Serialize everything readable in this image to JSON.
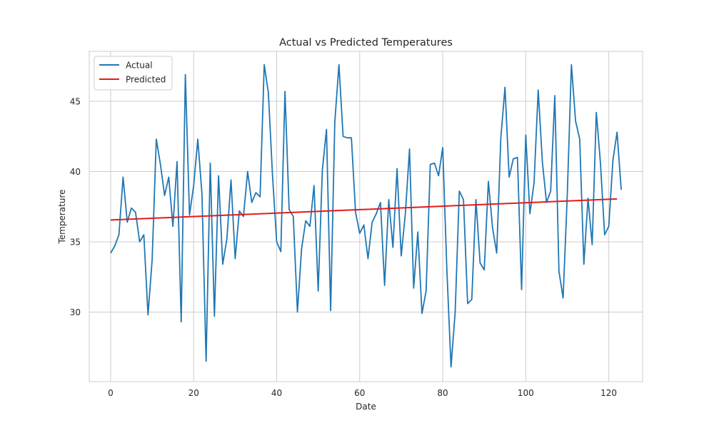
{
  "chart_data": {
    "type": "line",
    "title": "Actual vs Predicted Temperatures",
    "xlabel": "Date",
    "ylabel": "Temperature",
    "xlim": [
      -5.15,
      128.15
    ],
    "ylim": [
      25.05,
      48.55
    ],
    "xticks": [
      0,
      20,
      40,
      60,
      80,
      100,
      120
    ],
    "yticks": [
      30,
      35,
      40,
      45
    ],
    "grid": true,
    "legend": "top-left",
    "series": [
      {
        "name": "Actual",
        "color": "#1f77b4",
        "x": [
          0,
          1,
          2,
          3,
          4,
          5,
          6,
          7,
          8,
          9,
          10,
          11,
          12,
          13,
          14,
          15,
          16,
          17,
          18,
          19,
          20,
          21,
          22,
          23,
          24,
          25,
          26,
          27,
          28,
          29,
          30,
          31,
          32,
          33,
          34,
          35,
          36,
          37,
          38,
          39,
          40,
          41,
          42,
          43,
          44,
          45,
          46,
          47,
          48,
          49,
          50,
          51,
          52,
          53,
          54,
          55,
          56,
          57,
          58,
          59,
          60,
          61,
          62,
          63,
          64,
          65,
          66,
          67,
          68,
          69,
          70,
          71,
          72,
          73,
          74,
          75,
          76,
          77,
          78,
          79,
          80,
          81,
          82,
          83,
          84,
          85,
          86,
          87,
          88,
          89,
          90,
          91,
          92,
          93,
          94,
          95,
          96,
          97,
          98,
          99,
          100,
          101,
          102,
          103,
          104,
          105,
          106,
          107,
          108,
          109,
          110,
          111,
          112,
          113,
          114,
          115,
          116,
          117,
          118,
          119,
          120,
          121,
          122,
          123
        ],
        "y": [
          34.2,
          34.7,
          35.5,
          39.6,
          36.4,
          37.4,
          37.1,
          35.0,
          35.5,
          29.8,
          33.7,
          42.3,
          40.5,
          38.3,
          39.6,
          36.1,
          40.7,
          29.3,
          46.9,
          36.9,
          39.0,
          42.3,
          38.4,
          26.5,
          40.6,
          29.7,
          39.7,
          33.4,
          35.2,
          39.4,
          33.8,
          37.2,
          36.8,
          40.0,
          37.8,
          38.5,
          38.2,
          47.6,
          45.6,
          39.7,
          35.0,
          34.3,
          45.7,
          37.3,
          36.8,
          30.0,
          34.5,
          36.5,
          36.1,
          39.0,
          31.5,
          40.1,
          43.0,
          30.1,
          43.5,
          47.6,
          42.5,
          42.4,
          42.4,
          37.1,
          35.6,
          36.2,
          33.8,
          36.4,
          37.0,
          37.8,
          31.9,
          38.0,
          34.6,
          40.2,
          34.0,
          37.0,
          41.6,
          31.7,
          35.7,
          29.9,
          31.5,
          40.5,
          40.6,
          39.7,
          41.7,
          33.0,
          26.1,
          30.0,
          38.6,
          38.0,
          30.6,
          30.9,
          38.0,
          33.5,
          33.0,
          39.3,
          36.0,
          34.2,
          42.4,
          46.0,
          39.6,
          40.9,
          41.0,
          31.6,
          42.6,
          37.0,
          39.2,
          45.8,
          40.7,
          37.8,
          38.6,
          45.4,
          32.9,
          31.0,
          38.3,
          47.6,
          43.6,
          42.3,
          33.4,
          38.1,
          34.8,
          44.2,
          40.6,
          35.5,
          36.1,
          40.8,
          42.8,
          38.7
        ]
      },
      {
        "name": "Predicted",
        "color": "#e41a1c",
        "x": [
          0,
          122
        ],
        "y": [
          36.55,
          38.05
        ]
      }
    ]
  }
}
